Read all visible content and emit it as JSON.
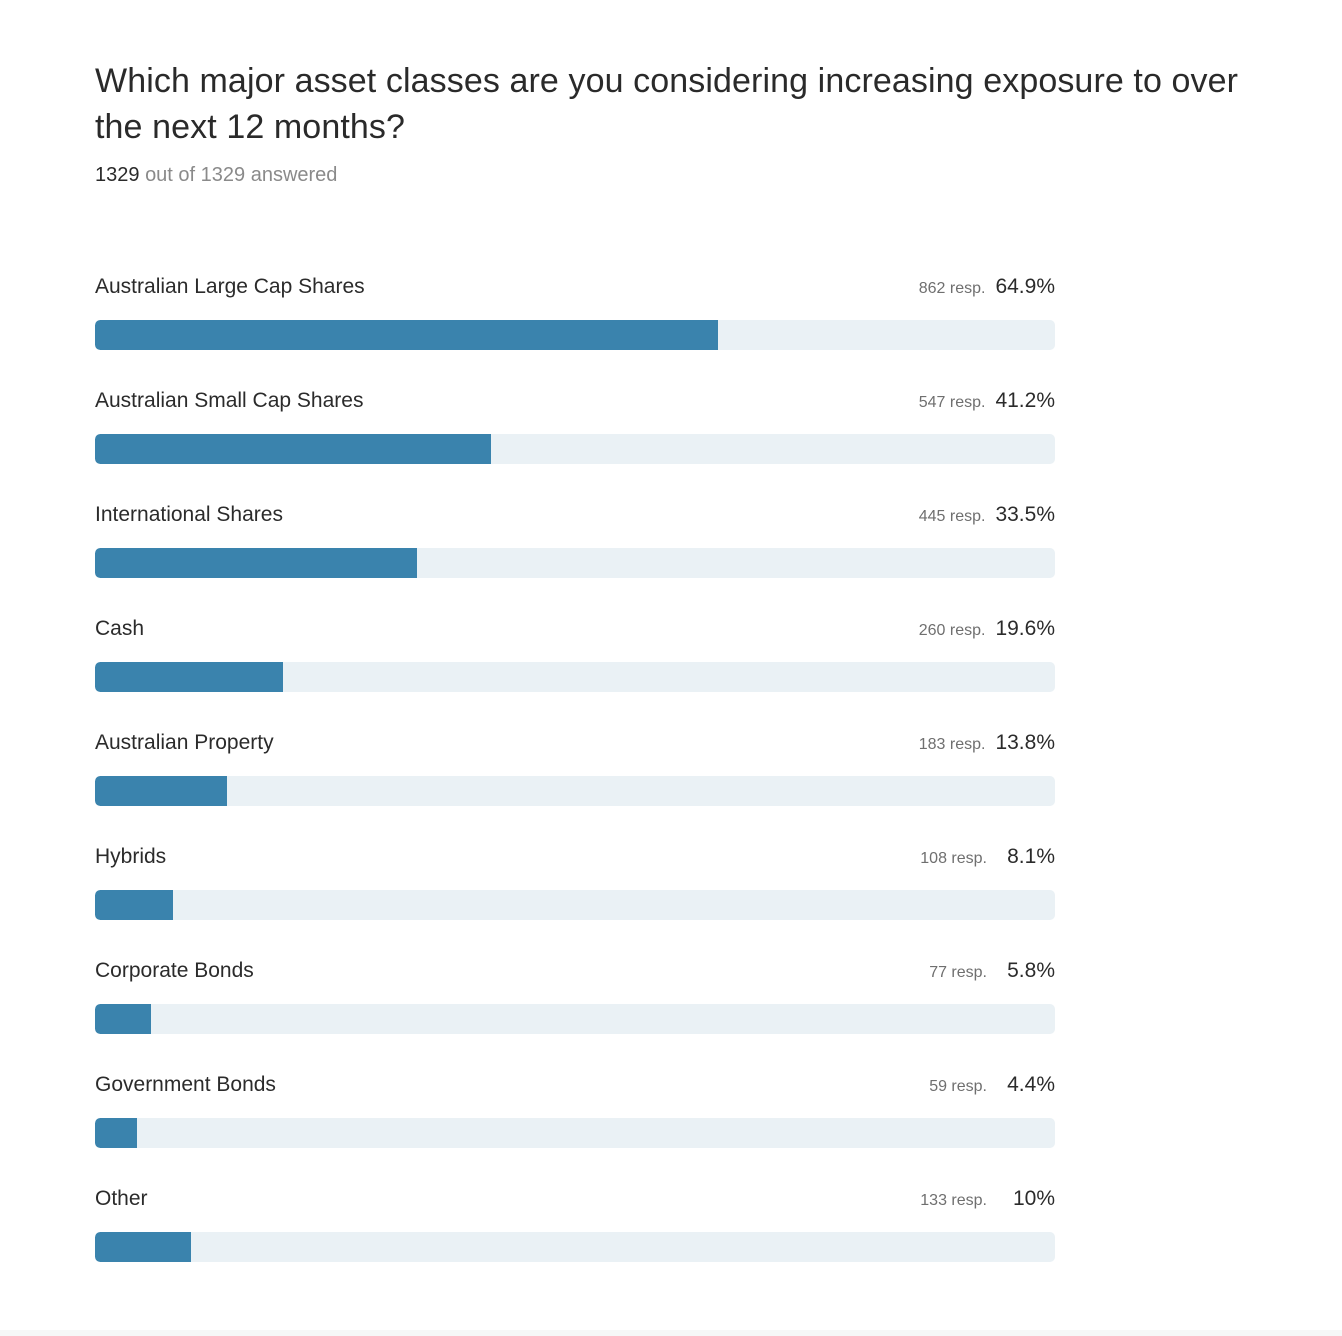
{
  "question": {
    "title": "Which major asset classes are you considering increasing exposure to over the next 12 months?",
    "answered_count": "1329",
    "answered_suffix": "out of 1329 answered"
  },
  "colors": {
    "bar_fill": "#3a83ad",
    "bar_track": "#eaf1f5"
  },
  "chart_data": {
    "type": "bar",
    "orientation": "horizontal",
    "title": "Which major asset classes are you considering increasing exposure to over the next 12 months?",
    "xlim": [
      0,
      100
    ],
    "unit": "%",
    "categories": [
      "Australian Large Cap Shares",
      "Australian Small Cap Shares",
      "International Shares",
      "Cash",
      "Australian Property",
      "Hybrids",
      "Corporate Bonds",
      "Government Bonds",
      "Other"
    ],
    "values": [
      64.9,
      41.2,
      33.5,
      19.6,
      13.8,
      8.1,
      5.8,
      4.4,
      10
    ],
    "responses": [
      862,
      547,
      445,
      260,
      183,
      108,
      77,
      59,
      133
    ],
    "response_labels": [
      "862 resp.",
      "547 resp.",
      "445 resp.",
      "260 resp.",
      "183 resp.",
      "108 resp.",
      "77 resp.",
      "59 resp.",
      "133 resp."
    ],
    "percent_labels": [
      "64.9%",
      "41.2%",
      "33.5%",
      "19.6%",
      "13.8%",
      "8.1%",
      "5.8%",
      "4.4%",
      "10%"
    ]
  }
}
